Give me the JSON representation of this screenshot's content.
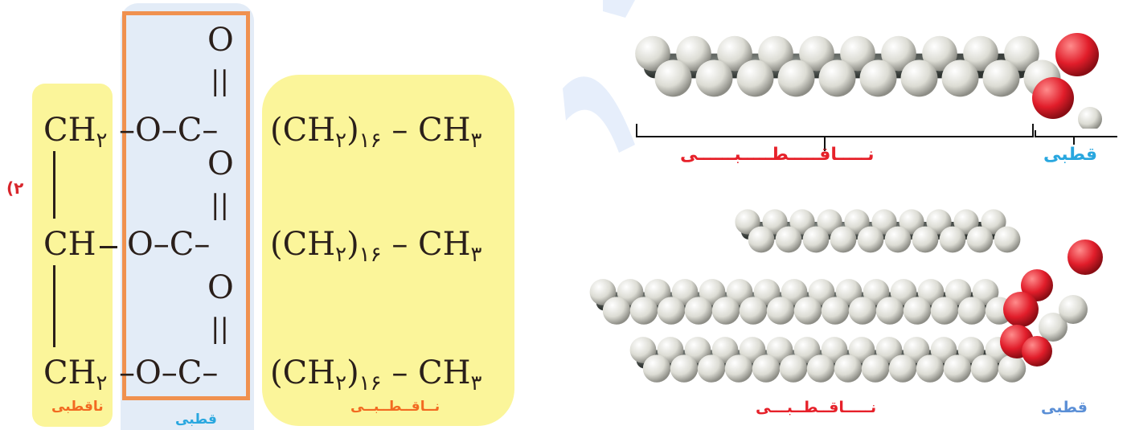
{
  "colors": {
    "yellow_highlight": "#fbf59a",
    "blue_highlight": "#e3ecf7",
    "orange_box": "#f0914f",
    "label_orange": "#f26a21",
    "label_blue": "#29a7df",
    "label_red": "#e6212a",
    "question_red": "#d8262c"
  },
  "question_number": "۲)",
  "glycerol": {
    "ch2_top": "CH",
    "ch2_top_sub": "۲",
    "ch_mid": "CH",
    "ch2_bottom": "CH",
    "ch2_bottom_sub": "۲"
  },
  "ester": {
    "oxygen": "O",
    "double_bond": "||",
    "row_text": "–O–C–",
    "row_text_mid": "O–C–"
  },
  "chains": {
    "open": "(CH",
    "sub2": "۲",
    "close": ")",
    "sub16": "۱۶",
    "tail": " – CH",
    "sub3": "۳"
  },
  "labels": {
    "left_nonpolar": "ناقطبی",
    "middle_polar": "قطبی",
    "right_nonpolar": "نــاقــطــبــی",
    "top_polar": "قطبی",
    "top_nonpolar": "نـــــاقـــــطـــــبــــــی",
    "bottom_polar": "قطبی",
    "bottom_nonpolar": "نـــــاقــطــبـــی"
  },
  "icons": {
    "fatty_acid_model": "space-filling-molecule-icon",
    "triglyceride_model": "space-filling-molecule-icon"
  }
}
